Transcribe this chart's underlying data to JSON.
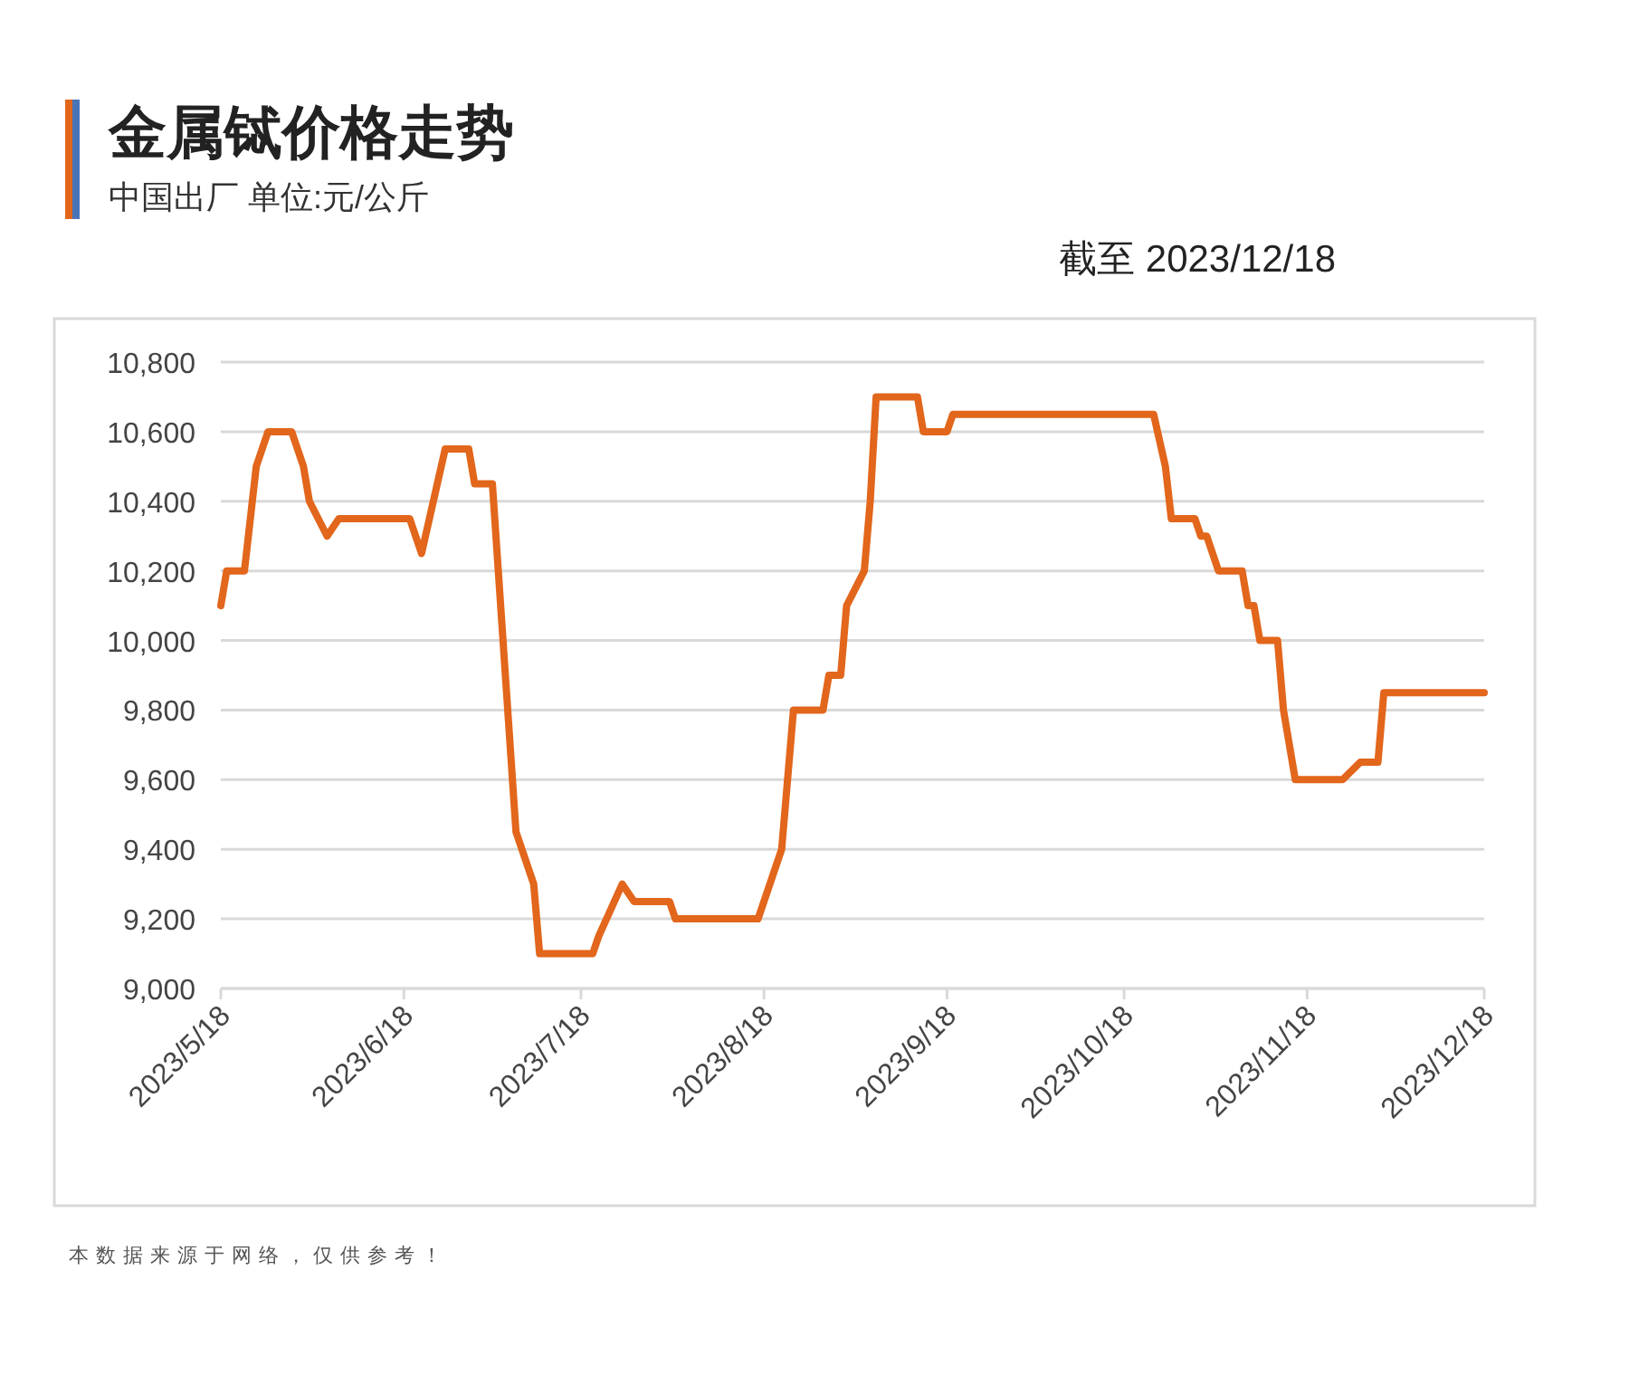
{
  "chart_data": {
    "type": "line",
    "title": "金属铽价格走势",
    "subtitle": "中国出厂  单位:元/公斤",
    "annotations": [
      "截至 2023/12/18",
      "本数据来源于网络，仅供参考！"
    ],
    "x": [
      "2023-05-18",
      "2023-05-19",
      "2023-05-22",
      "2023-05-24",
      "2023-05-26",
      "2023-05-30",
      "2023-06-01",
      "2023-06-02",
      "2023-06-05",
      "2023-06-07",
      "2023-06-19",
      "2023-06-21",
      "2023-06-25",
      "2023-06-29",
      "2023-06-30",
      "2023-07-03",
      "2023-07-07",
      "2023-07-10",
      "2023-07-11",
      "2023-07-20",
      "2023-07-21",
      "2023-07-25",
      "2023-07-27",
      "2023-08-02",
      "2023-08-03",
      "2023-08-17",
      "2023-08-21",
      "2023-08-23",
      "2023-08-28",
      "2023-08-29",
      "2023-08-31",
      "2023-09-01",
      "2023-09-04",
      "2023-09-05",
      "2023-09-06",
      "2023-09-13",
      "2023-09-14",
      "2023-09-18",
      "2023-09-19",
      "2023-10-23",
      "2023-10-25",
      "2023-10-26",
      "2023-10-30",
      "2023-10-31",
      "2023-11-01",
      "2023-11-03",
      "2023-11-07",
      "2023-11-08",
      "2023-11-09",
      "2023-11-10",
      "2023-11-13",
      "2023-11-14",
      "2023-11-16",
      "2023-11-24",
      "2023-11-27",
      "2023-11-30",
      "2023-12-01",
      "2023-12-18"
    ],
    "series": [
      {
        "color": "#e2661b",
        "values": [
          10100,
          10200,
          10200,
          10500,
          10600,
          10600,
          10500,
          10400,
          10300,
          10350,
          10350,
          10250,
          10550,
          10550,
          10450,
          10450,
          9450,
          9300,
          9100,
          9100,
          9150,
          9300,
          9250,
          9250,
          9200,
          9200,
          9400,
          9800,
          9800,
          9900,
          9900,
          10100,
          10200,
          10400,
          10700,
          10700,
          10600,
          10600,
          10650,
          10650,
          10500,
          10350,
          10350,
          10300,
          10300,
          10200,
          10200,
          10100,
          10100,
          10000,
          10000,
          9800,
          9600,
          9600,
          9650,
          9650,
          9850,
          9850
        ]
      }
    ],
    "xlim": [
      "2023-05-18",
      "2023-12-18"
    ],
    "xticks": [
      {
        "value": "2023-05-18",
        "label": "2023/5/18"
      },
      {
        "value": "2023-06-18",
        "label": "2023/6/18"
      },
      {
        "value": "2023-07-18",
        "label": "2023/7/18"
      },
      {
        "value": "2023-08-18",
        "label": "2023/8/18"
      },
      {
        "value": "2023-09-18",
        "label": "2023/9/18"
      },
      {
        "value": "2023-10-18",
        "label": "2023/10/18"
      },
      {
        "value": "2023-11-18",
        "label": "2023/11/18"
      },
      {
        "value": "2023-12-18",
        "label": "2023/12/18"
      }
    ],
    "ylim": [
      9000,
      10800
    ],
    "yticks": [
      {
        "value": 9000,
        "label": "9,000"
      },
      {
        "value": 9200,
        "label": "9,200"
      },
      {
        "value": 9400,
        "label": "9,400"
      },
      {
        "value": 9600,
        "label": "9,600"
      },
      {
        "value": 9800,
        "label": "9,800"
      },
      {
        "value": 10000,
        "label": "10,000"
      },
      {
        "value": 10200,
        "label": "10,200"
      },
      {
        "value": 10400,
        "label": "10,400"
      },
      {
        "value": 10600,
        "label": "10,600"
      },
      {
        "value": 10800,
        "label": "10,800"
      }
    ],
    "grid": "y",
    "line_style": "solid",
    "marker": "none"
  }
}
